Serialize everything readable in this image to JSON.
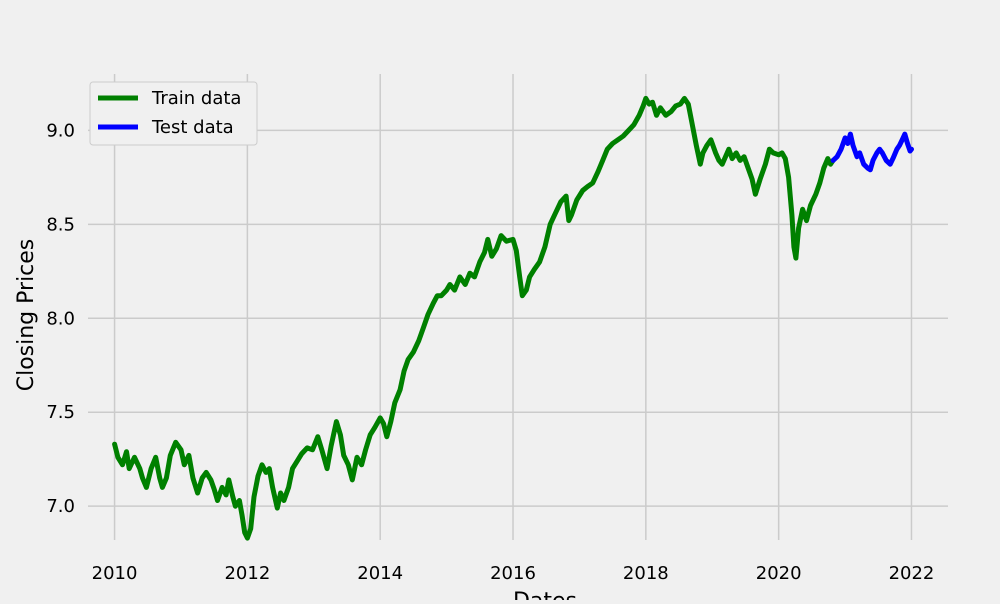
{
  "chart_data": {
    "type": "line",
    "title": "",
    "xlabel": "Dates",
    "ylabel": "Closing Prices",
    "x_ticks": [
      "2010",
      "2012",
      "2014",
      "2016",
      "2018",
      "2020",
      "2022"
    ],
    "x_tick_values": [
      2010,
      2012,
      2014,
      2016,
      2018,
      2020,
      2022
    ],
    "y_ticks": [
      "7.0",
      "7.5",
      "8.0",
      "8.5",
      "9.0"
    ],
    "y_tick_values": [
      7.0,
      7.5,
      8.0,
      8.5,
      9.0
    ],
    "xlim": [
      2009.6,
      2022.55
    ],
    "ylim": [
      6.82,
      9.3
    ],
    "grid": true,
    "legend": {
      "position": "top-left"
    },
    "style": {
      "background": "#f0f0f0",
      "grid_color": "#cbcbcb"
    },
    "series": [
      {
        "name": "Train data",
        "color": "#008000",
        "points": [
          [
            2010.0,
            7.33
          ],
          [
            2010.05,
            7.26
          ],
          [
            2010.12,
            7.22
          ],
          [
            2010.18,
            7.29
          ],
          [
            2010.22,
            7.2
          ],
          [
            2010.3,
            7.26
          ],
          [
            2010.38,
            7.2
          ],
          [
            2010.42,
            7.15
          ],
          [
            2010.48,
            7.1
          ],
          [
            2010.55,
            7.2
          ],
          [
            2010.62,
            7.26
          ],
          [
            2010.68,
            7.15
          ],
          [
            2010.72,
            7.1
          ],
          [
            2010.78,
            7.15
          ],
          [
            2010.84,
            7.27
          ],
          [
            2010.92,
            7.34
          ],
          [
            2011.0,
            7.3
          ],
          [
            2011.05,
            7.22
          ],
          [
            2011.12,
            7.27
          ],
          [
            2011.18,
            7.15
          ],
          [
            2011.25,
            7.07
          ],
          [
            2011.32,
            7.15
          ],
          [
            2011.38,
            7.18
          ],
          [
            2011.45,
            7.14
          ],
          [
            2011.5,
            7.09
          ],
          [
            2011.55,
            7.03
          ],
          [
            2011.62,
            7.1
          ],
          [
            2011.68,
            7.06
          ],
          [
            2011.72,
            7.14
          ],
          [
            2011.78,
            7.05
          ],
          [
            2011.82,
            7.0
          ],
          [
            2011.88,
            7.03
          ],
          [
            2011.92,
            6.95
          ],
          [
            2011.96,
            6.86
          ],
          [
            2012.0,
            6.83
          ],
          [
            2012.05,
            6.88
          ],
          [
            2012.1,
            7.05
          ],
          [
            2012.16,
            7.16
          ],
          [
            2012.22,
            7.22
          ],
          [
            2012.28,
            7.18
          ],
          [
            2012.33,
            7.2
          ],
          [
            2012.38,
            7.1
          ],
          [
            2012.45,
            6.99
          ],
          [
            2012.5,
            7.07
          ],
          [
            2012.55,
            7.03
          ],
          [
            2012.62,
            7.1
          ],
          [
            2012.68,
            7.2
          ],
          [
            2012.75,
            7.24
          ],
          [
            2012.82,
            7.28
          ],
          [
            2012.9,
            7.31
          ],
          [
            2012.98,
            7.3
          ],
          [
            2013.06,
            7.37
          ],
          [
            2013.12,
            7.3
          ],
          [
            2013.2,
            7.2
          ],
          [
            2013.26,
            7.32
          ],
          [
            2013.34,
            7.45
          ],
          [
            2013.4,
            7.38
          ],
          [
            2013.45,
            7.27
          ],
          [
            2013.52,
            7.22
          ],
          [
            2013.58,
            7.14
          ],
          [
            2013.65,
            7.26
          ],
          [
            2013.72,
            7.22
          ],
          [
            2013.78,
            7.3
          ],
          [
            2013.85,
            7.38
          ],
          [
            2013.92,
            7.42
          ],
          [
            2014.0,
            7.47
          ],
          [
            2014.05,
            7.44
          ],
          [
            2014.1,
            7.37
          ],
          [
            2014.16,
            7.45
          ],
          [
            2014.22,
            7.55
          ],
          [
            2014.3,
            7.62
          ],
          [
            2014.36,
            7.72
          ],
          [
            2014.42,
            7.78
          ],
          [
            2014.5,
            7.82
          ],
          [
            2014.58,
            7.88
          ],
          [
            2014.65,
            7.95
          ],
          [
            2014.72,
            8.02
          ],
          [
            2014.8,
            8.08
          ],
          [
            2014.86,
            8.12
          ],
          [
            2014.92,
            8.12
          ],
          [
            2015.0,
            8.15
          ],
          [
            2015.05,
            8.18
          ],
          [
            2015.12,
            8.15
          ],
          [
            2015.2,
            8.22
          ],
          [
            2015.28,
            8.18
          ],
          [
            2015.35,
            8.24
          ],
          [
            2015.42,
            8.22
          ],
          [
            2015.5,
            8.3
          ],
          [
            2015.57,
            8.35
          ],
          [
            2015.62,
            8.42
          ],
          [
            2015.68,
            8.33
          ],
          [
            2015.75,
            8.37
          ],
          [
            2015.82,
            8.44
          ],
          [
            2015.9,
            8.41
          ],
          [
            2016.0,
            8.42
          ],
          [
            2016.05,
            8.36
          ],
          [
            2016.1,
            8.22
          ],
          [
            2016.14,
            8.12
          ],
          [
            2016.2,
            8.15
          ],
          [
            2016.25,
            8.22
          ],
          [
            2016.32,
            8.26
          ],
          [
            2016.4,
            8.3
          ],
          [
            2016.48,
            8.38
          ],
          [
            2016.56,
            8.5
          ],
          [
            2016.64,
            8.56
          ],
          [
            2016.72,
            8.62
          ],
          [
            2016.8,
            8.65
          ],
          [
            2016.84,
            8.52
          ],
          [
            2016.88,
            8.55
          ],
          [
            2016.96,
            8.63
          ],
          [
            2017.05,
            8.68
          ],
          [
            2017.12,
            8.7
          ],
          [
            2017.2,
            8.72
          ],
          [
            2017.28,
            8.78
          ],
          [
            2017.35,
            8.84
          ],
          [
            2017.42,
            8.9
          ],
          [
            2017.5,
            8.93
          ],
          [
            2017.58,
            8.95
          ],
          [
            2017.66,
            8.97
          ],
          [
            2017.74,
            9.0
          ],
          [
            2017.82,
            9.03
          ],
          [
            2017.9,
            9.08
          ],
          [
            2017.96,
            9.13
          ],
          [
            2018.0,
            9.17
          ],
          [
            2018.05,
            9.14
          ],
          [
            2018.1,
            9.15
          ],
          [
            2018.16,
            9.08
          ],
          [
            2018.22,
            9.12
          ],
          [
            2018.3,
            9.08
          ],
          [
            2018.38,
            9.1
          ],
          [
            2018.45,
            9.13
          ],
          [
            2018.52,
            9.14
          ],
          [
            2018.58,
            9.17
          ],
          [
            2018.64,
            9.14
          ],
          [
            2018.7,
            9.03
          ],
          [
            2018.76,
            8.92
          ],
          [
            2018.82,
            8.82
          ],
          [
            2018.86,
            8.88
          ],
          [
            2018.92,
            8.92
          ],
          [
            2018.98,
            8.95
          ],
          [
            2019.05,
            8.88
          ],
          [
            2019.1,
            8.84
          ],
          [
            2019.15,
            8.82
          ],
          [
            2019.2,
            8.86
          ],
          [
            2019.25,
            8.9
          ],
          [
            2019.3,
            8.85
          ],
          [
            2019.36,
            8.88
          ],
          [
            2019.42,
            8.84
          ],
          [
            2019.48,
            8.86
          ],
          [
            2019.54,
            8.8
          ],
          [
            2019.6,
            8.74
          ],
          [
            2019.65,
            8.66
          ],
          [
            2019.72,
            8.74
          ],
          [
            2019.8,
            8.82
          ],
          [
            2019.86,
            8.9
          ],
          [
            2019.92,
            8.88
          ],
          [
            2020.0,
            8.87
          ],
          [
            2020.05,
            8.88
          ],
          [
            2020.1,
            8.85
          ],
          [
            2020.15,
            8.75
          ],
          [
            2020.2,
            8.55
          ],
          [
            2020.23,
            8.38
          ],
          [
            2020.26,
            8.32
          ],
          [
            2020.3,
            8.48
          ],
          [
            2020.36,
            8.58
          ],
          [
            2020.42,
            8.52
          ],
          [
            2020.48,
            8.6
          ],
          [
            2020.56,
            8.66
          ],
          [
            2020.62,
            8.72
          ],
          [
            2020.68,
            8.8
          ],
          [
            2020.74,
            8.85
          ],
          [
            2020.78,
            8.82
          ],
          [
            2020.82,
            8.84
          ]
        ]
      },
      {
        "name": "Test data",
        "color": "#0000ff",
        "points": [
          [
            2020.82,
            8.84
          ],
          [
            2020.88,
            8.86
          ],
          [
            2020.94,
            8.9
          ],
          [
            2021.0,
            8.96
          ],
          [
            2021.04,
            8.93
          ],
          [
            2021.08,
            8.98
          ],
          [
            2021.12,
            8.92
          ],
          [
            2021.18,
            8.86
          ],
          [
            2021.22,
            8.88
          ],
          [
            2021.28,
            8.82
          ],
          [
            2021.34,
            8.8
          ],
          [
            2021.38,
            8.79
          ],
          [
            2021.42,
            8.84
          ],
          [
            2021.48,
            8.88
          ],
          [
            2021.52,
            8.9
          ],
          [
            2021.56,
            8.88
          ],
          [
            2021.62,
            8.84
          ],
          [
            2021.68,
            8.82
          ],
          [
            2021.72,
            8.85
          ],
          [
            2021.78,
            8.9
          ],
          [
            2021.82,
            8.92
          ],
          [
            2021.86,
            8.95
          ],
          [
            2021.9,
            8.98
          ],
          [
            2021.94,
            8.93
          ],
          [
            2021.98,
            8.89
          ],
          [
            2022.0,
            8.9
          ]
        ]
      }
    ]
  }
}
